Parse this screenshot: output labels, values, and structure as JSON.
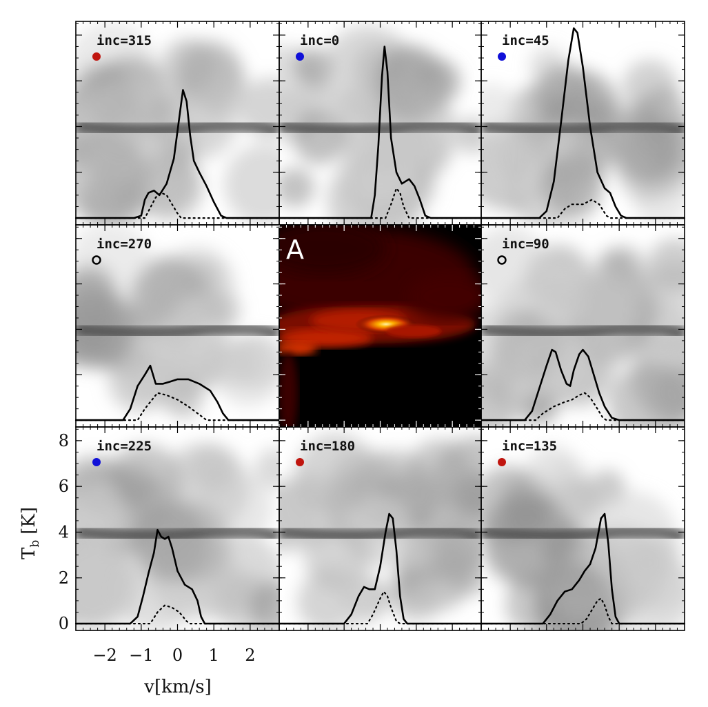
{
  "chart_data": {
    "type": "line",
    "xlabel": "v[km/s]",
    "ylabel": "T_b [K]",
    "ylabel_main": "T",
    "ylabel_sub": "b",
    "ylabel_unit": "[K]",
    "xlim": [
      -2.8,
      2.8
    ],
    "ylim": [
      -0.3,
      8.6
    ],
    "xticks": [
      -2,
      -1,
      0,
      1,
      2
    ],
    "xtick_labels": [
      "−2",
      "−1",
      "0",
      "1",
      "2"
    ],
    "yticks": [
      0,
      2,
      4,
      6,
      8
    ],
    "ytick_labels": [
      "0",
      "2",
      "4",
      "6",
      "8"
    ],
    "center_panel_label": "A",
    "colors": {
      "red": "#c0150e",
      "blue": "#1010d8",
      "open": "#000000",
      "line": "#000000"
    },
    "panels": [
      {
        "label": "inc=315",
        "marker": "red",
        "row": 0,
        "col": 0,
        "solid": [
          [
            -2.8,
            0
          ],
          [
            -1.2,
            0
          ],
          [
            -1.0,
            0.1
          ],
          [
            -0.9,
            0.8
          ],
          [
            -0.8,
            1.1
          ],
          [
            -0.65,
            1.2
          ],
          [
            -0.5,
            1.0
          ],
          [
            -0.3,
            1.5
          ],
          [
            -0.1,
            2.6
          ],
          [
            0.05,
            4.4
          ],
          [
            0.15,
            5.6
          ],
          [
            0.25,
            5.1
          ],
          [
            0.35,
            3.6
          ],
          [
            0.45,
            2.5
          ],
          [
            0.6,
            2.0
          ],
          [
            0.8,
            1.4
          ],
          [
            1.0,
            0.7
          ],
          [
            1.2,
            0.1
          ],
          [
            1.35,
            0
          ],
          [
            2.8,
            0
          ]
        ],
        "dotted": [
          [
            -2.8,
            0
          ],
          [
            -0.9,
            0
          ],
          [
            -0.8,
            0.3
          ],
          [
            -0.6,
            0.9
          ],
          [
            -0.45,
            1.1
          ],
          [
            -0.3,
            1.0
          ],
          [
            -0.15,
            0.6
          ],
          [
            0,
            0.2
          ],
          [
            0.1,
            0
          ],
          [
            2.8,
            0
          ]
        ]
      },
      {
        "label": "inc=0",
        "marker": "blue",
        "row": 0,
        "col": 1,
        "solid": [
          [
            -2.8,
            0
          ],
          [
            -0.25,
            0
          ],
          [
            -0.15,
            1.0
          ],
          [
            -0.05,
            3.2
          ],
          [
            0.05,
            6.2
          ],
          [
            0.12,
            7.5
          ],
          [
            0.2,
            6.4
          ],
          [
            0.3,
            3.5
          ],
          [
            0.45,
            2.0
          ],
          [
            0.6,
            1.5
          ],
          [
            0.8,
            1.7
          ],
          [
            0.95,
            1.4
          ],
          [
            1.1,
            0.8
          ],
          [
            1.25,
            0.1
          ],
          [
            1.4,
            0
          ],
          [
            2.8,
            0
          ]
        ],
        "dotted": [
          [
            -2.8,
            0
          ],
          [
            0.15,
            0
          ],
          [
            0.3,
            0.6
          ],
          [
            0.45,
            1.3
          ],
          [
            0.55,
            1.1
          ],
          [
            0.65,
            0.5
          ],
          [
            0.8,
            0
          ],
          [
            2.8,
            0
          ]
        ]
      },
      {
        "label": "inc=45",
        "marker": "blue",
        "row": 0,
        "col": 2,
        "solid": [
          [
            -2.8,
            0
          ],
          [
            -1.2,
            0
          ],
          [
            -1.0,
            0.3
          ],
          [
            -0.8,
            1.6
          ],
          [
            -0.6,
            4.2
          ],
          [
            -0.4,
            6.9
          ],
          [
            -0.25,
            8.3
          ],
          [
            -0.15,
            8.1
          ],
          [
            0.0,
            6.6
          ],
          [
            0.2,
            4.0
          ],
          [
            0.4,
            2.0
          ],
          [
            0.6,
            1.3
          ],
          [
            0.75,
            1.1
          ],
          [
            0.9,
            0.5
          ],
          [
            1.05,
            0.1
          ],
          [
            1.2,
            0
          ],
          [
            2.8,
            0
          ]
        ],
        "dotted": [
          [
            -2.8,
            0
          ],
          [
            -0.7,
            0
          ],
          [
            -0.5,
            0.4
          ],
          [
            -0.3,
            0.6
          ],
          [
            0,
            0.6
          ],
          [
            0.25,
            0.8
          ],
          [
            0.45,
            0.6
          ],
          [
            0.65,
            0.1
          ],
          [
            0.75,
            0
          ],
          [
            2.8,
            0
          ]
        ]
      },
      {
        "label": "inc=270",
        "marker": "open",
        "row": 1,
        "col": 0,
        "solid": [
          [
            -2.8,
            0
          ],
          [
            -1.5,
            0
          ],
          [
            -1.3,
            0.5
          ],
          [
            -1.1,
            1.5
          ],
          [
            -0.9,
            2.0
          ],
          [
            -0.75,
            2.4
          ],
          [
            -0.6,
            1.6
          ],
          [
            -0.4,
            1.6
          ],
          [
            -0.2,
            1.7
          ],
          [
            0.0,
            1.8
          ],
          [
            0.3,
            1.8
          ],
          [
            0.6,
            1.6
          ],
          [
            0.9,
            1.3
          ],
          [
            1.1,
            0.8
          ],
          [
            1.25,
            0.3
          ],
          [
            1.4,
            0
          ],
          [
            2.8,
            0
          ]
        ],
        "dotted": [
          [
            -2.8,
            0
          ],
          [
            -1.1,
            0
          ],
          [
            -0.9,
            0.5
          ],
          [
            -0.7,
            0.9
          ],
          [
            -0.55,
            1.2
          ],
          [
            -0.3,
            1.1
          ],
          [
            0,
            0.9
          ],
          [
            0.3,
            0.6
          ],
          [
            0.55,
            0.3
          ],
          [
            0.8,
            0
          ],
          [
            2.8,
            0
          ]
        ]
      },
      {
        "label": "inc=90",
        "marker": "open",
        "row": 1,
        "col": 2,
        "solid": [
          [
            -2.8,
            0
          ],
          [
            -1.6,
            0
          ],
          [
            -1.4,
            0.4
          ],
          [
            -1.2,
            1.4
          ],
          [
            -1.0,
            2.4
          ],
          [
            -0.85,
            3.1
          ],
          [
            -0.75,
            3.0
          ],
          [
            -0.6,
            2.2
          ],
          [
            -0.45,
            1.6
          ],
          [
            -0.35,
            1.5
          ],
          [
            -0.25,
            2.2
          ],
          [
            -0.1,
            2.9
          ],
          [
            0.0,
            3.1
          ],
          [
            0.15,
            2.8
          ],
          [
            0.3,
            2.0
          ],
          [
            0.45,
            1.2
          ],
          [
            0.6,
            0.6
          ],
          [
            0.8,
            0.1
          ],
          [
            1.0,
            0
          ],
          [
            2.8,
            0
          ]
        ],
        "dotted": [
          [
            -2.8,
            0
          ],
          [
            -1.3,
            0
          ],
          [
            -1.1,
            0.3
          ],
          [
            -0.8,
            0.6
          ],
          [
            -0.5,
            0.8
          ],
          [
            -0.3,
            0.9
          ],
          [
            -0.1,
            1.1
          ],
          [
            0.05,
            1.2
          ],
          [
            0.2,
            1.0
          ],
          [
            0.4,
            0.5
          ],
          [
            0.55,
            0.1
          ],
          [
            0.65,
            0
          ],
          [
            2.8,
            0
          ]
        ]
      },
      {
        "label": "inc=225",
        "marker": "blue",
        "row": 2,
        "col": 0,
        "solid": [
          [
            -2.8,
            0
          ],
          [
            -1.3,
            0
          ],
          [
            -1.1,
            0.3
          ],
          [
            -0.95,
            1.2
          ],
          [
            -0.8,
            2.2
          ],
          [
            -0.65,
            3.1
          ],
          [
            -0.55,
            4.1
          ],
          [
            -0.45,
            3.8
          ],
          [
            -0.35,
            3.7
          ],
          [
            -0.25,
            3.8
          ],
          [
            -0.15,
            3.3
          ],
          [
            0.0,
            2.3
          ],
          [
            0.2,
            1.7
          ],
          [
            0.4,
            1.5
          ],
          [
            0.55,
            1.0
          ],
          [
            0.65,
            0.3
          ],
          [
            0.75,
            0
          ],
          [
            2.8,
            0
          ]
        ],
        "dotted": [
          [
            -2.8,
            0
          ],
          [
            -0.75,
            0
          ],
          [
            -0.55,
            0.5
          ],
          [
            -0.35,
            0.8
          ],
          [
            -0.15,
            0.7
          ],
          [
            0.05,
            0.5
          ],
          [
            0.25,
            0.1
          ],
          [
            0.35,
            0
          ],
          [
            2.8,
            0
          ]
        ]
      },
      {
        "label": "inc=180",
        "marker": "red",
        "row": 2,
        "col": 1,
        "solid": [
          [
            -2.8,
            0
          ],
          [
            -1.0,
            0
          ],
          [
            -0.8,
            0.4
          ],
          [
            -0.6,
            1.2
          ],
          [
            -0.45,
            1.6
          ],
          [
            -0.3,
            1.5
          ],
          [
            -0.15,
            1.5
          ],
          [
            0.0,
            2.5
          ],
          [
            0.15,
            4.0
          ],
          [
            0.25,
            4.8
          ],
          [
            0.35,
            4.6
          ],
          [
            0.45,
            3.2
          ],
          [
            0.55,
            1.2
          ],
          [
            0.65,
            0.2
          ],
          [
            0.75,
            0
          ],
          [
            2.8,
            0
          ]
        ],
        "dotted": [
          [
            -2.8,
            0
          ],
          [
            -0.35,
            0
          ],
          [
            -0.2,
            0.4
          ],
          [
            0.0,
            1.1
          ],
          [
            0.1,
            1.4
          ],
          [
            0.2,
            1.2
          ],
          [
            0.3,
            0.7
          ],
          [
            0.45,
            0.1
          ],
          [
            0.55,
            0
          ],
          [
            2.8,
            0
          ]
        ]
      },
      {
        "label": "inc=135",
        "marker": "red",
        "row": 2,
        "col": 2,
        "solid": [
          [
            -2.8,
            0
          ],
          [
            -1.1,
            0
          ],
          [
            -0.9,
            0.4
          ],
          [
            -0.7,
            1.0
          ],
          [
            -0.5,
            1.4
          ],
          [
            -0.3,
            1.5
          ],
          [
            -0.1,
            1.9
          ],
          [
            0.05,
            2.3
          ],
          [
            0.2,
            2.6
          ],
          [
            0.35,
            3.3
          ],
          [
            0.5,
            4.6
          ],
          [
            0.6,
            4.8
          ],
          [
            0.7,
            3.5
          ],
          [
            0.8,
            1.5
          ],
          [
            0.9,
            0.3
          ],
          [
            1.0,
            0
          ],
          [
            2.8,
            0
          ]
        ],
        "dotted": [
          [
            -2.8,
            0
          ],
          [
            -0.05,
            0
          ],
          [
            0.1,
            0.2
          ],
          [
            0.25,
            0.6
          ],
          [
            0.4,
            1.0
          ],
          [
            0.5,
            1.1
          ],
          [
            0.6,
            0.8
          ],
          [
            0.7,
            0.3
          ],
          [
            0.8,
            0
          ],
          [
            2.8,
            0
          ]
        ]
      }
    ]
  }
}
